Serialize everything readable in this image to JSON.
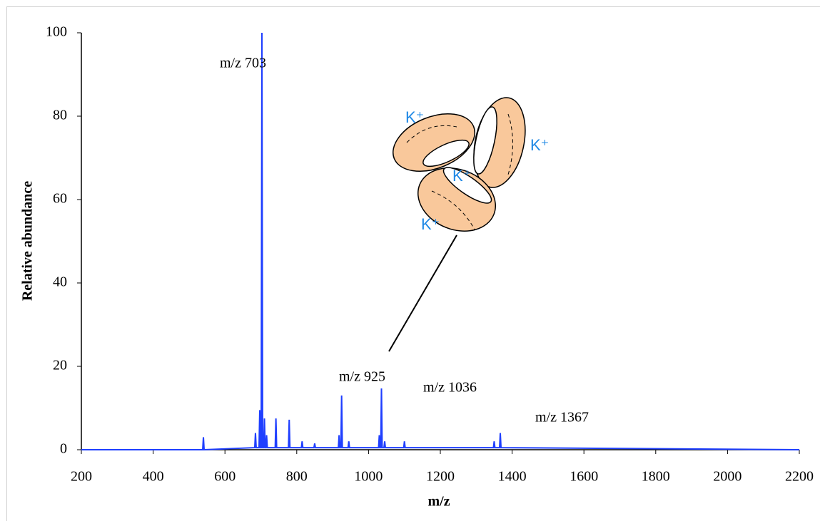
{
  "chart_data": {
    "type": "line",
    "x_label": "m/z",
    "y_label": "Relative abundance",
    "x": [
      200,
      538,
      540,
      542,
      683,
      685,
      687,
      695,
      697,
      699,
      701,
      703,
      705,
      708,
      710,
      712,
      714,
      716,
      718,
      740,
      742,
      744,
      777,
      779,
      781,
      813,
      815,
      817,
      848,
      850,
      852,
      916,
      918,
      920,
      923,
      925,
      927,
      943,
      945,
      947,
      1028,
      1030,
      1032,
      1034,
      1036,
      1038,
      1043,
      1045,
      1047,
      1098,
      1100,
      1102,
      1348,
      1350,
      1352,
      1365,
      1367,
      1369,
      2200
    ],
    "values": [
      0,
      0,
      3,
      0,
      0.5,
      4,
      0.5,
      0.5,
      9.5,
      0.5,
      0.5,
      100,
      0.5,
      0.5,
      7.5,
      0.5,
      0.5,
      3.5,
      0.5,
      0.5,
      7.5,
      0.5,
      0.5,
      7.2,
      0.5,
      0.5,
      2,
      0.5,
      0.5,
      1.5,
      0.5,
      0.5,
      3.5,
      0.5,
      0.5,
      13,
      0.5,
      0.5,
      2,
      0.5,
      0.5,
      3.5,
      0.5,
      0.5,
      14.7,
      0.5,
      0.5,
      2,
      0.5,
      0.5,
      2,
      0.5,
      0.5,
      2,
      0.5,
      0.5,
      4,
      0.5,
      0
    ],
    "color": "#1f3fff",
    "xlim": [
      200,
      2200
    ],
    "xticks": [
      200,
      400,
      600,
      800,
      1000,
      1200,
      1400,
      1600,
      1800,
      2000,
      2200
    ],
    "ylim": [
      0,
      100
    ],
    "yticks": [
      0,
      20,
      40,
      60,
      80,
      100
    ],
    "annotations": [
      "m/z 703",
      "m/z 925",
      "m/z 1036",
      "m/z 1367"
    ],
    "diagram_labels": [
      "K⁺",
      "K⁺",
      "K⁺",
      "K⁺"
    ]
  }
}
